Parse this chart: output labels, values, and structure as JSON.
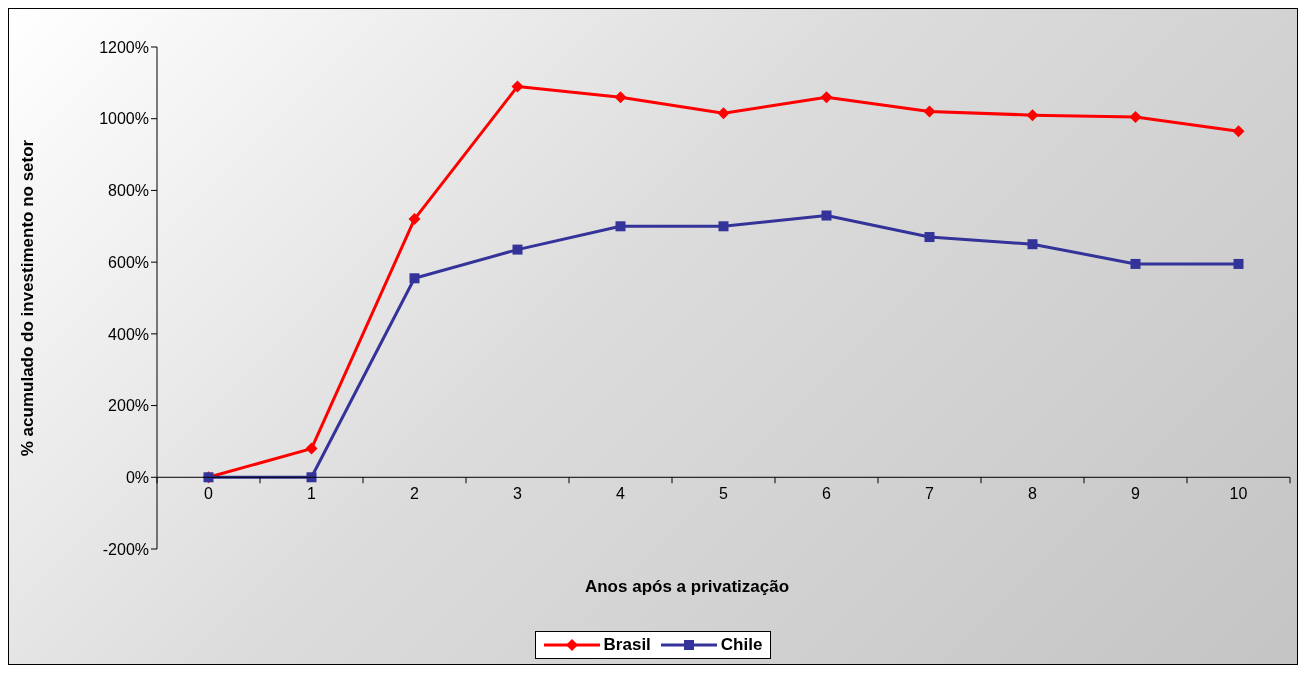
{
  "chart_data": {
    "type": "line",
    "xlabel": "Anos após a privatização",
    "ylabel": "% acumulado do investimento no setor",
    "categories": [
      "0",
      "1",
      "2",
      "3",
      "4",
      "5",
      "6",
      "7",
      "8",
      "9",
      "10"
    ],
    "series": [
      {
        "name": "Brasil",
        "color": "#ff0000",
        "marker": "diamond",
        "values": [
          0,
          80,
          720,
          1090,
          1060,
          1015,
          1060,
          1020,
          1010,
          1005,
          965
        ]
      },
      {
        "name": "Chile",
        "color": "#333399",
        "marker": "square",
        "values": [
          0,
          0,
          555,
          635,
          700,
          700,
          730,
          670,
          650,
          595,
          595
        ]
      }
    ],
    "ylim": [
      -200,
      1200
    ],
    "yticks": [
      {
        "value": -200,
        "label": "-200%"
      },
      {
        "value": 0,
        "label": "0%"
      },
      {
        "value": 200,
        "label": "200%"
      },
      {
        "value": 400,
        "label": "400%"
      },
      {
        "value": 600,
        "label": "600%"
      },
      {
        "value": 800,
        "label": "800%"
      },
      {
        "value": 1000,
        "label": "1000%"
      },
      {
        "value": 1200,
        "label": "1200%"
      }
    ],
    "grid": false,
    "legend": "bottom",
    "line_style": "solid"
  }
}
